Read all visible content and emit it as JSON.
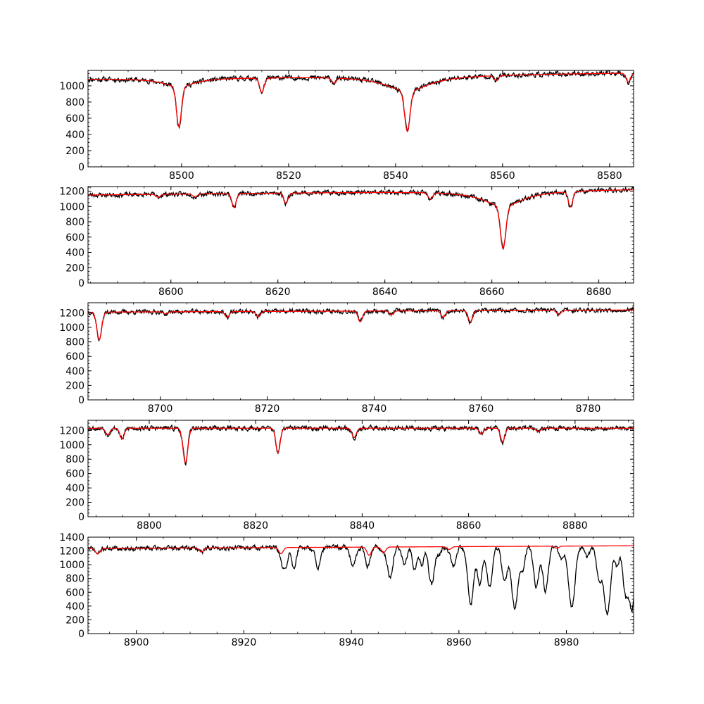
{
  "chart_data": [
    {
      "type": "line",
      "xlim": [
        8482.5,
        8584.5
      ],
      "ylim": [
        0,
        1190
      ],
      "x_ticks": [
        8500,
        8520,
        8540,
        8560,
        8580
      ],
      "y_ticks": [
        0,
        200,
        400,
        600,
        800,
        1000
      ],
      "x_minor_step": 5,
      "y_minor_step": 50,
      "continuum": [
        [
          8482.5,
          1085
        ],
        [
          8584.5,
          1160
        ]
      ],
      "lines": [
        {
          "c": 8499.5,
          "d": 600,
          "w": 0.45,
          "lw": 3.5,
          "ld": 0.18
        },
        {
          "c": 8515.0,
          "d": 180,
          "w": 0.4,
          "lw": 1.5,
          "ld": 0.05
        },
        {
          "c": 8542.2,
          "d": 690,
          "w": 0.5,
          "lw": 5.0,
          "ld": 0.28
        },
        {
          "c": 8528.5,
          "d": 60,
          "w": 0.4
        },
        {
          "c": 8558.8,
          "d": 60,
          "w": 0.4
        },
        {
          "c": 8583.5,
          "d": 110,
          "w": 0.4
        }
      ],
      "noise": 25,
      "seed": 11,
      "extra": [],
      "series": [
        {
          "name": "",
          "color": "#000000"
        },
        {
          "name": "",
          "color": "#ff0000"
        }
      ]
    },
    {
      "type": "line",
      "xlim": [
        8584.5,
        8686.5
      ],
      "ylim": [
        0,
        1260
      ],
      "x_ticks": [
        8600,
        8620,
        8640,
        8660,
        8680
      ],
      "y_ticks": [
        0,
        200,
        400,
        600,
        800,
        1000,
        1200
      ],
      "x_minor_step": 5,
      "y_minor_step": 50,
      "continuum": [
        [
          8584.5,
          1150
        ],
        [
          8686.5,
          1225
        ]
      ],
      "lines": [
        {
          "c": 8611.8,
          "d": 180,
          "w": 0.4
        },
        {
          "c": 8621.5,
          "d": 130,
          "w": 0.4
        },
        {
          "c": 8648.5,
          "d": 80,
          "w": 0.4
        },
        {
          "c": 8662.1,
          "d": 760,
          "w": 0.5,
          "lw": 4.5,
          "ld": 0.27
        },
        {
          "c": 8674.7,
          "d": 200,
          "w": 0.4
        },
        {
          "c": 8597.6,
          "d": 40,
          "w": 0.4
        },
        {
          "c": 8604.5,
          "d": 40,
          "w": 0.4
        }
      ],
      "noise": 25,
      "seed": 23,
      "extra": [],
      "series": [
        {
          "name": "",
          "color": "#000000"
        },
        {
          "name": "",
          "color": "#ff0000"
        }
      ]
    },
    {
      "type": "line",
      "xlim": [
        8686.5,
        8788.5
      ],
      "ylim": [
        0,
        1340
      ],
      "x_ticks": [
        8700,
        8720,
        8740,
        8760,
        8780
      ],
      "y_ticks": [
        0,
        200,
        400,
        600,
        800,
        1000,
        1200
      ],
      "x_minor_step": 5,
      "y_minor_step": 50,
      "continuum": [
        [
          8686.5,
          1210
        ],
        [
          8788.5,
          1240
        ]
      ],
      "lines": [
        {
          "c": 8688.6,
          "d": 380,
          "w": 0.45
        },
        {
          "c": 8737.4,
          "d": 150,
          "w": 0.4
        },
        {
          "c": 8752.9,
          "d": 90,
          "w": 0.4
        },
        {
          "c": 8758.0,
          "d": 160,
          "w": 0.4
        },
        {
          "c": 8712.5,
          "d": 80,
          "w": 0.4
        },
        {
          "c": 8718.3,
          "d": 70,
          "w": 0.4
        },
        {
          "c": 8743.2,
          "d": 50,
          "w": 0.4
        },
        {
          "c": 8774.5,
          "d": 60,
          "w": 0.4
        },
        {
          "c": 8701.0,
          "d": 30,
          "w": 0.4
        }
      ],
      "noise": 26,
      "seed": 37,
      "extra": [],
      "series": [
        {
          "name": "",
          "color": "#000000"
        },
        {
          "name": "",
          "color": "#ff0000"
        }
      ]
    },
    {
      "type": "line",
      "xlim": [
        8788.5,
        8891.0
      ],
      "ylim": [
        0,
        1340
      ],
      "x_ticks": [
        8800,
        8820,
        8840,
        8860,
        8880
      ],
      "y_ticks": [
        0,
        200,
        400,
        600,
        800,
        1000,
        1200
      ],
      "x_minor_step": 5,
      "y_minor_step": 50,
      "continuum": [
        [
          8788.5,
          1230
        ],
        [
          8891.0,
          1230
        ]
      ],
      "lines": [
        {
          "c": 8792.2,
          "d": 90,
          "w": 0.4
        },
        {
          "c": 8794.9,
          "d": 150,
          "w": 0.4
        },
        {
          "c": 8806.8,
          "d": 480,
          "w": 0.45
        },
        {
          "c": 8824.2,
          "d": 340,
          "w": 0.4
        },
        {
          "c": 8838.5,
          "d": 130,
          "w": 0.4
        },
        {
          "c": 8862.4,
          "d": 80,
          "w": 0.4
        },
        {
          "c": 8866.4,
          "d": 190,
          "w": 0.4
        },
        {
          "c": 8873.1,
          "d": 50,
          "w": 0.4
        }
      ],
      "noise": 28,
      "seed": 53,
      "extra": [],
      "series": [
        {
          "name": "",
          "color": "#000000"
        },
        {
          "name": "",
          "color": "#ff0000"
        }
      ]
    },
    {
      "type": "line",
      "xlim": [
        8891.0,
        8992.5
      ],
      "ylim": [
        0,
        1400
      ],
      "x_ticks": [
        8900,
        8920,
        8940,
        8960,
        8980
      ],
      "y_ticks": [
        0,
        200,
        400,
        600,
        800,
        1000,
        1200,
        1400
      ],
      "x_minor_step": 5,
      "y_minor_step": 50,
      "continuum": [
        [
          8891.0,
          1235
        ],
        [
          8992.5,
          1275
        ]
      ],
      "lines": [
        {
          "c": 8892.8,
          "d": 80,
          "w": 0.4
        },
        {
          "c": 8912.1,
          "d": 60,
          "w": 0.4
        },
        {
          "c": 8926.9,
          "d": 90,
          "w": 0.4
        },
        {
          "c": 8943.3,
          "d": 120,
          "w": 0.4
        },
        {
          "c": 8946.0,
          "d": 80,
          "w": 0.4
        },
        {
          "c": 8958.2,
          "d": 40,
          "w": 0.4
        },
        {
          "c": 8978.2,
          "d": 30,
          "w": 0.4
        }
      ],
      "noise": 28,
      "seed": 71,
      "extra": [
        {
          "c": 8927.6,
          "d": 310,
          "w": 0.5
        },
        {
          "c": 8929.3,
          "d": 300,
          "w": 0.4
        },
        {
          "c": 8933.8,
          "d": 290,
          "w": 0.5
        },
        {
          "c": 8940.3,
          "d": 280,
          "w": 0.5
        },
        {
          "c": 8942.9,
          "d": 190,
          "w": 0.4
        },
        {
          "c": 8947.2,
          "d": 440,
          "w": 0.5
        },
        {
          "c": 8949.9,
          "d": 260,
          "w": 0.45
        },
        {
          "c": 8951.8,
          "d": 320,
          "w": 0.45
        },
        {
          "c": 8953.1,
          "d": 260,
          "w": 0.4
        },
        {
          "c": 8954.9,
          "d": 560,
          "w": 0.5
        },
        {
          "c": 8956.3,
          "d": 120,
          "w": 0.4
        },
        {
          "c": 8959.0,
          "d": 260,
          "w": 0.45
        },
        {
          "c": 8962.2,
          "d": 850,
          "w": 0.55
        },
        {
          "c": 8963.9,
          "d": 540,
          "w": 0.45
        },
        {
          "c": 8965.7,
          "d": 600,
          "w": 0.5
        },
        {
          "c": 8968.5,
          "d": 520,
          "w": 0.5
        },
        {
          "c": 8970.4,
          "d": 900,
          "w": 0.6
        },
        {
          "c": 8971.9,
          "d": 320,
          "w": 0.4
        },
        {
          "c": 8974.4,
          "d": 580,
          "w": 0.5
        },
        {
          "c": 8976.1,
          "d": 650,
          "w": 0.5
        },
        {
          "c": 8979.1,
          "d": 200,
          "w": 0.4
        },
        {
          "c": 8981.0,
          "d": 900,
          "w": 0.6
        },
        {
          "c": 8983.9,
          "d": 180,
          "w": 0.4
        },
        {
          "c": 8986.1,
          "d": 480,
          "w": 0.5
        },
        {
          "c": 8987.6,
          "d": 980,
          "w": 0.6
        },
        {
          "c": 8989.4,
          "d": 300,
          "w": 0.4
        },
        {
          "c": 8991.0,
          "d": 700,
          "w": 0.5
        },
        {
          "c": 8992.2,
          "d": 900,
          "w": 0.5
        }
      ],
      "series": [
        {
          "name": "",
          "color": "#000000"
        },
        {
          "name": "",
          "color": "#ff0000"
        }
      ]
    }
  ]
}
